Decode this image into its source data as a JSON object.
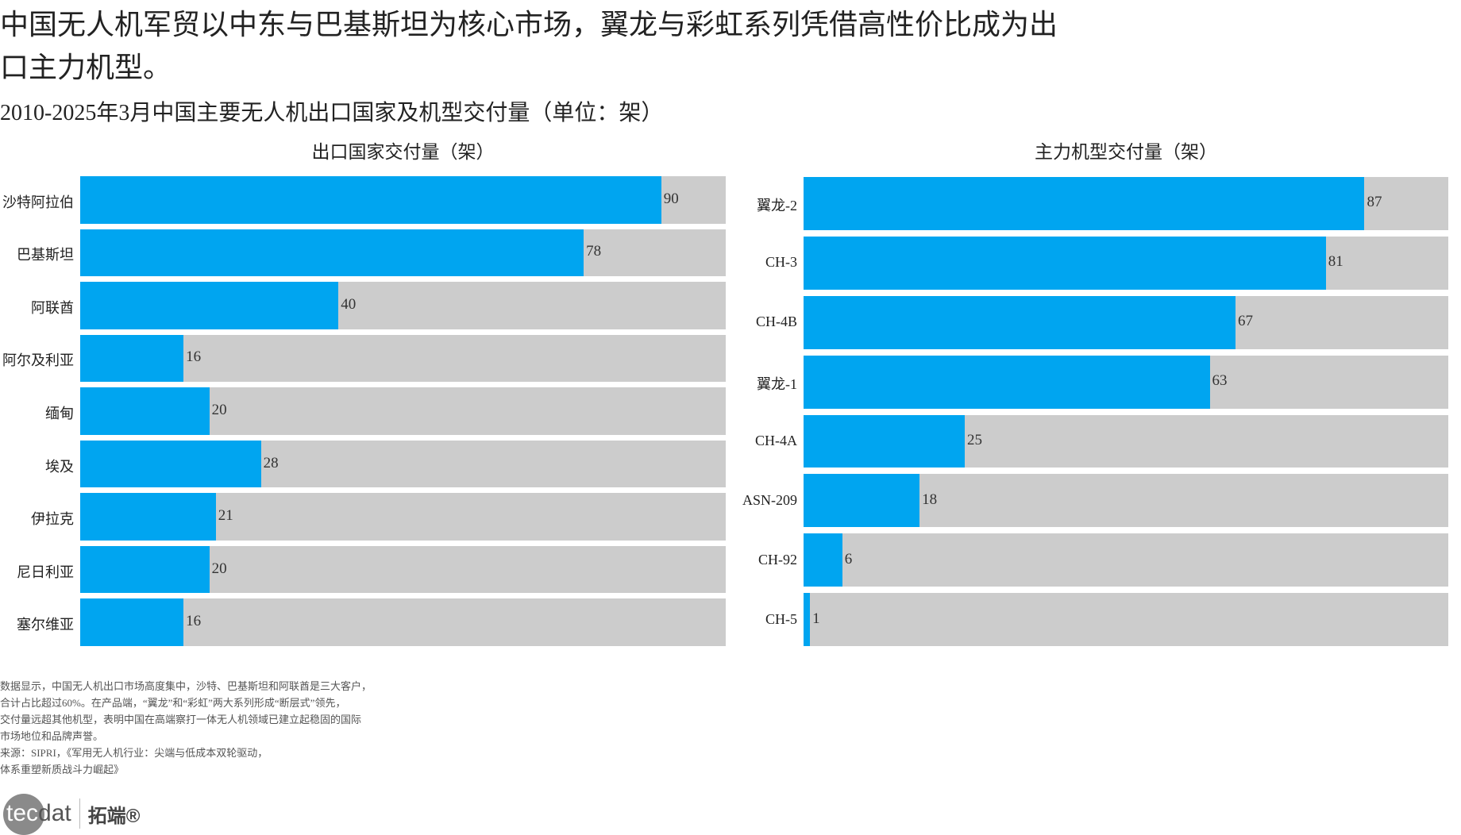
{
  "title": "中国无人机军贸以中东与巴基斯坦为核心市场，翼龙与彩虹系列凭借高性价比成为出口主力机型。",
  "subtitle": "2010-2025年3月中国主要无人机出口国家及机型交付量（单位：架）",
  "chart_data": [
    {
      "type": "bar",
      "orientation": "horizontal",
      "title": "出口国家交付量（架）",
      "xlim": [
        0,
        100
      ],
      "categories": [
        "沙特阿拉伯",
        "巴基斯坦",
        "阿联酋",
        "阿尔及利亚",
        "缅甸",
        "埃及",
        "伊拉克",
        "尼日利亚",
        "塞尔维亚"
      ],
      "values": [
        90,
        78,
        40,
        16,
        20,
        28,
        21,
        20,
        16
      ],
      "bar_color": "#00a5f0",
      "track_color": "#cccccc"
    },
    {
      "type": "bar",
      "orientation": "horizontal",
      "title": "主力机型交付量（架）",
      "xlim": [
        0,
        100
      ],
      "categories": [
        "翼龙-2",
        "CH-3",
        "CH-4B",
        "翼龙-1",
        "CH-4A",
        "ASN-209",
        "CH-92",
        "CH-5"
      ],
      "values": [
        87,
        81,
        67,
        63,
        25,
        18,
        6,
        1
      ],
      "bar_color": "#00a5f0",
      "track_color": "#cccccc"
    }
  ],
  "note": {
    "lines": [
      "数据显示，中国无人机出口市场高度集中，沙特、巴基斯坦和阿联酋是三大客户，",
      "合计占比超过60%。在产品端，“翼龙”和“彩虹”两大系列形成“断层式”领先，",
      "交付量远超其他机型，表明中国在高端察打一体无人机领域已建立起稳固的国际",
      "市场地位和品牌声誉。",
      "来源：SIPRI，《军用无人机行业：尖端与低成本双轮驱动，",
      "体系重塑新质战斗力崛起》"
    ]
  },
  "logo": {
    "tec": "tec",
    "dat": "dat",
    "cn": "拓端®"
  }
}
